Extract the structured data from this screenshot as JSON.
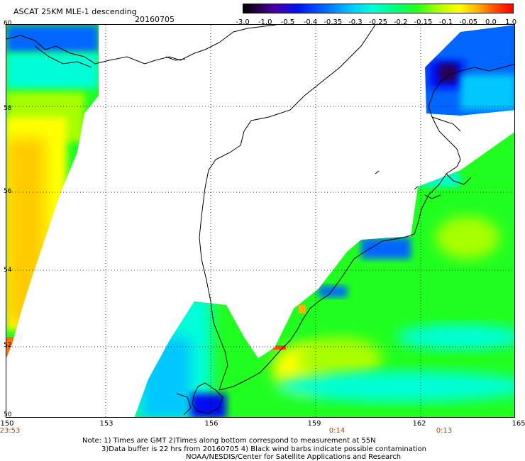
{
  "header": {
    "title": "ASCAT 25KM MLE-1 descending",
    "date": "20160705"
  },
  "colorbar": {
    "ticks": [
      "-3.0",
      "-1.0",
      "-0.5",
      "-0.4",
      "-0.35",
      "-0.3",
      "-0.25",
      "-0.2",
      "-0.15",
      "-0.1",
      "-0.05",
      "0.0",
      "1.0"
    ]
  },
  "axes": {
    "lat_labels": [
      "60",
      "58",
      "56",
      "54",
      "52",
      "50"
    ],
    "lon_labels": [
      "150",
      "153",
      "156",
      "159",
      "162",
      "165"
    ]
  },
  "times": {
    "t1": "23:53",
    "t2": "0:14",
    "t3": "0:13"
  },
  "notes": {
    "line1": "Note: 1) Times are GMT 2)Times along bottom correspond to measurement at 55N",
    "line2": "3)Data buffer is 22 hrs from 20160705 4) Black wind barbs indicate possible contamination",
    "line3": "NOAA/NESDIS/Center for Satellite Applications and Research"
  },
  "colors": {
    "purple": "#2a0050",
    "blue": "#0010f0",
    "cyan": "#00ffd8",
    "green": "#20ff20",
    "yellow": "#ffff00",
    "orange": "#ffb000",
    "red": "#ff0000"
  }
}
